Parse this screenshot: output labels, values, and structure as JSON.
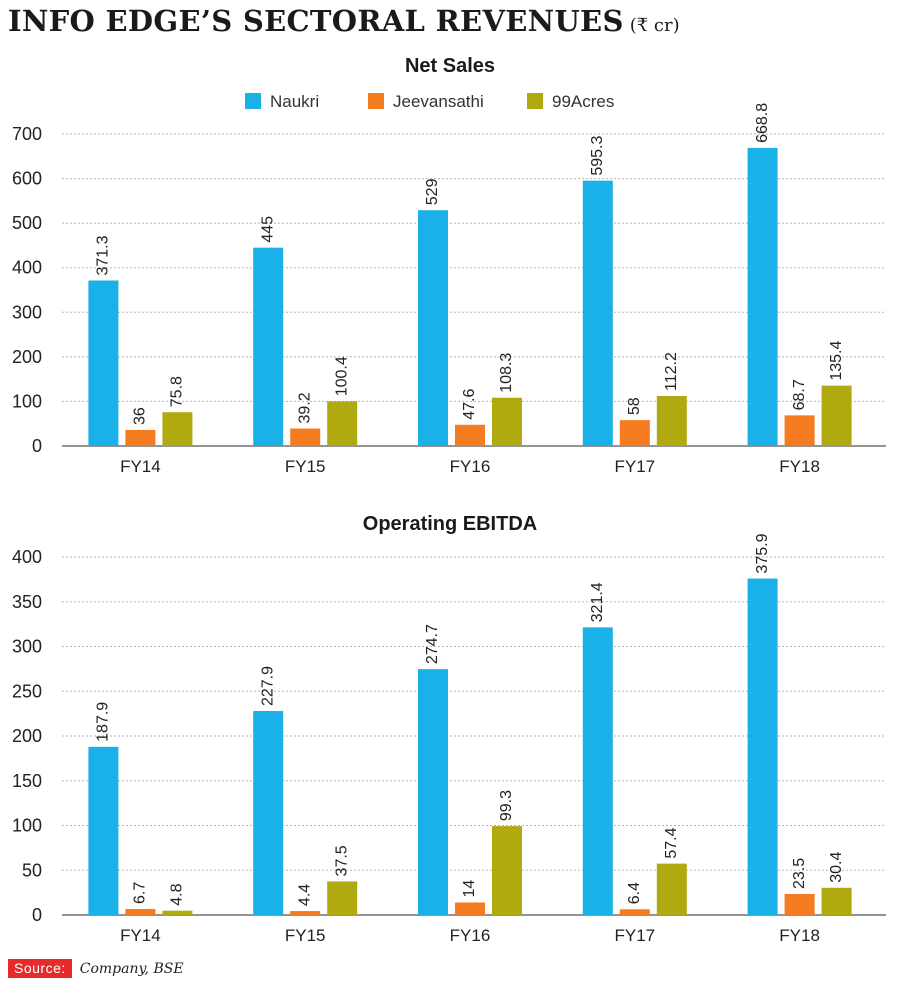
{
  "header": {
    "title": "INFO EDGE’S SECTORAL REVENUES",
    "unit": "(₹ cr)"
  },
  "colors": {
    "naukri": "#1ab1e8",
    "jeevansathi": "#f47b20",
    "acres": "#b0a90f",
    "grid": "#b5b5b5",
    "axis": "#555555"
  },
  "chart_data": [
    {
      "type": "bar",
      "title": "Net Sales",
      "categories": [
        "FY14",
        "FY15",
        "FY16",
        "FY17",
        "FY18"
      ],
      "series": [
        {
          "name": "Naukri",
          "values": [
            371.3,
            445,
            529,
            595.3,
            668.8
          ],
          "labels": [
            "371.3",
            "445",
            "529",
            "595.3",
            "668.8"
          ]
        },
        {
          "name": "Jeevansathi",
          "values": [
            36,
            39.2,
            47.6,
            58,
            68.7
          ],
          "labels": [
            "36",
            "39.2",
            "47.6",
            "58",
            "68.7"
          ]
        },
        {
          "name": "99Acres",
          "values": [
            75.8,
            100.4,
            108.3,
            112.2,
            135.4
          ],
          "labels": [
            "75.8",
            "100.4",
            "108.3",
            "112.2",
            "135.4"
          ]
        }
      ],
      "yticks": [
        0,
        100,
        200,
        300,
        400,
        500,
        600,
        700
      ],
      "ylim": [
        0,
        700
      ],
      "legend": "top-center",
      "grid": true
    },
    {
      "type": "bar",
      "title": "Operating EBITDA",
      "categories": [
        "FY14",
        "FY15",
        "FY16",
        "FY17",
        "FY18"
      ],
      "series": [
        {
          "name": "Naukri",
          "values": [
            187.9,
            227.9,
            274.7,
            321.4,
            375.9
          ],
          "labels": [
            "187.9",
            "227.9",
            "274.7",
            "321.4",
            "375.9"
          ]
        },
        {
          "name": "Jeevansathi",
          "values": [
            6.7,
            4.4,
            14,
            6.4,
            23.5
          ],
          "labels": [
            "6.7",
            "4.4",
            "14",
            "6.4",
            "23.5"
          ]
        },
        {
          "name": "99Acres",
          "values": [
            4.8,
            37.5,
            99.3,
            57.4,
            30.4
          ],
          "labels": [
            "4.8",
            "37.5",
            "99.3",
            "57.4",
            "30.4"
          ]
        }
      ],
      "yticks": [
        0,
        50,
        100,
        150,
        200,
        250,
        300,
        350,
        400
      ],
      "ylim": [
        0,
        400
      ],
      "grid": true
    }
  ],
  "source": {
    "label": "Source:",
    "text": "Company, BSE"
  }
}
